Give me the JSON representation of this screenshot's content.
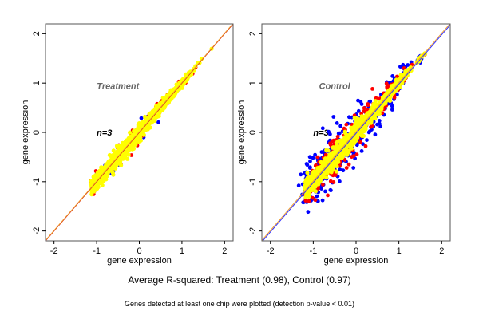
{
  "captions": {
    "main": "Average R-squared: Treatment (0.98), Control (0.97)",
    "note": "Genes detected at least one chip were plotted (detection p-value < 0.01)"
  },
  "chart_data": [
    {
      "type": "scatter",
      "title": "Treatment",
      "annotation": "n=3",
      "xlabel": "gene expression",
      "ylabel": "gene expression",
      "xlim": [
        -2.2,
        2.2
      ],
      "ylim": [
        -2.2,
        2.2
      ],
      "xticks": [
        -2,
        -1,
        0,
        1,
        2
      ],
      "yticks": [
        -2,
        -1,
        0,
        1,
        2
      ],
      "grid": false,
      "spread_blue": 0.1,
      "spread_red": 0.12,
      "spread_yellow": 0.09,
      "x_range": [
        -1.1,
        1.15
      ],
      "series_colors": {
        "blue": "#0000ff",
        "red": "#ff0000",
        "yellow": "#ffff00"
      },
      "reference_lines": [
        {
          "name": "identity-red",
          "color": "#cc0000",
          "slope": 1,
          "intercept": 0
        },
        {
          "name": "identity-orange",
          "color": "#f0a030",
          "slope": 1,
          "intercept": 0.01
        }
      ]
    },
    {
      "type": "scatter",
      "title": "Control",
      "annotation": "n=3",
      "xlabel": "gene expression",
      "ylabel": "gene expression",
      "xlim": [
        -2.2,
        2.2
      ],
      "ylim": [
        -2.2,
        2.2
      ],
      "xticks": [
        -2,
        -1,
        0,
        1,
        2
      ],
      "yticks": [
        -2,
        -1,
        0,
        1,
        2
      ],
      "grid": false,
      "spread_blue": 0.28,
      "spread_red": 0.22,
      "spread_yellow": 0.11,
      "x_range": [
        -1.15,
        1.15
      ],
      "series_colors": {
        "blue": "#0000ff",
        "red": "#ff0000",
        "yellow": "#ffff00"
      },
      "reference_lines": [
        {
          "name": "identity-blue",
          "color": "#3030ff",
          "slope": 1,
          "intercept": -0.02
        },
        {
          "name": "identity-orange",
          "color": "#f0a030",
          "slope": 1,
          "intercept": 0.01
        }
      ]
    }
  ]
}
